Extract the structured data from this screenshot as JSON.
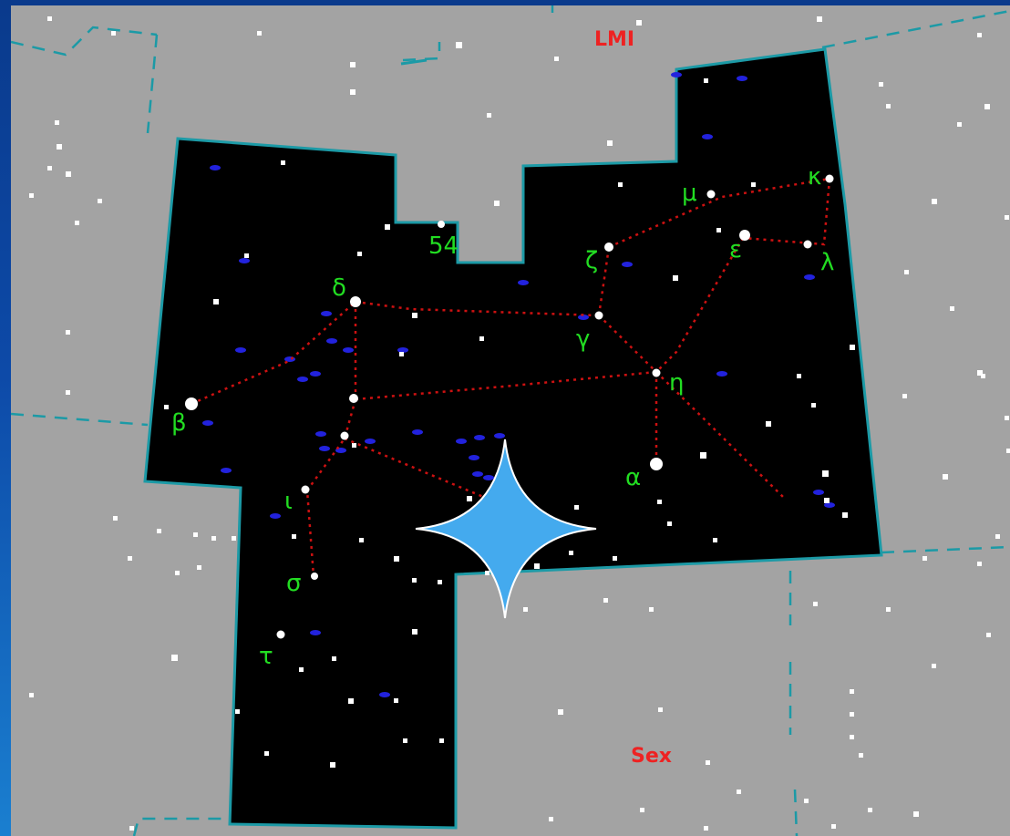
{
  "colors": {
    "sky_outside": "#a3a3a3",
    "constellation_fill": "#000000",
    "boundary": "#1c9aa6",
    "constellation_lines": "#cc1111",
    "greek_labels": "#22dd22",
    "neighbor_labels": "#ee2222",
    "stars": "#ffffff",
    "galaxies": "#2222dd",
    "marker": "#44aaee"
  },
  "neighbors": {
    "north": "LMI",
    "south": "Sex"
  },
  "star_labels": {
    "alpha": "α",
    "beta": "β",
    "gamma": "γ",
    "delta": "δ",
    "epsilon": "ε",
    "zeta": "ζ",
    "eta": "η",
    "iota": "ι",
    "kappa": "κ",
    "lambda": "λ",
    "mu": "μ",
    "sigma": "σ",
    "tau": "τ",
    "flamsteed_54": "54"
  },
  "marker_icon": "four-point-star-icon"
}
